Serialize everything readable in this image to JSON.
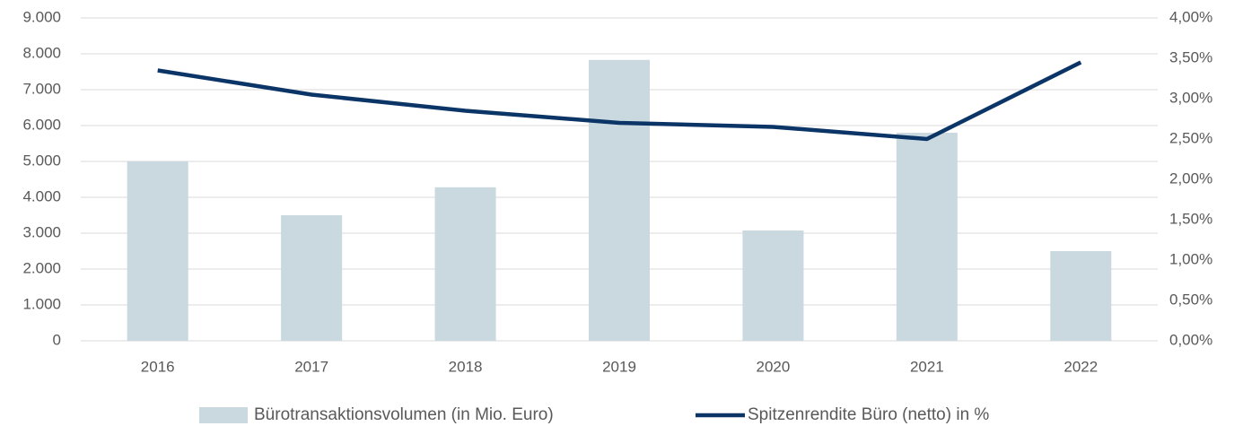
{
  "chart_data": {
    "type": "bar-line",
    "categories": [
      "2016",
      "2017",
      "2018",
      "2019",
      "2020",
      "2021",
      "2022"
    ],
    "series": [
      {
        "name": "Bürotransaktionsvolumen (in Mio. Euro)",
        "type": "bar",
        "color": "#c9d9df",
        "values": [
          5000,
          3500,
          4280,
          7830,
          3075,
          5800,
          2500
        ]
      },
      {
        "name": "Spitzenrendite Büro (netto) in %",
        "type": "line",
        "axis": "y2",
        "color": "#0b3467",
        "values": [
          3.35,
          3.05,
          2.85,
          2.7,
          2.65,
          2.5,
          3.45
        ]
      }
    ],
    "ylim": [
      0,
      9000
    ],
    "yticks": [
      0,
      {
        "value": 1000,
        "label": "1.000"
      },
      {
        "value": 2000,
        "label": "2.000"
      },
      {
        "value": 3000,
        "label": "3.000"
      },
      {
        "value": 4000,
        "label": "4.000"
      },
      {
        "value": 5000,
        "label": "5.000"
      },
      {
        "value": 6000,
        "label": "6.000"
      },
      {
        "value": 7000,
        "label": "7.000"
      },
      {
        "value": 8000,
        "label": "8.000"
      },
      {
        "value": 9000,
        "label": "9.000"
      }
    ],
    "y2lim": [
      0,
      4
    ],
    "y2ticks": [
      {
        "value": 0,
        "label": "0,00%"
      },
      {
        "value": 0.5,
        "label": "0,50%"
      },
      {
        "value": 1,
        "label": "1,00%"
      },
      {
        "value": 1.5,
        "label": "1,50%"
      },
      {
        "value": 2,
        "label": "2,00%"
      },
      {
        "value": 2.5,
        "label": "2,50%"
      },
      {
        "value": 3,
        "label": "3,00%"
      },
      {
        "value": 3.5,
        "label": "3,50%"
      },
      {
        "value": 4,
        "label": "4,00%"
      }
    ],
    "grid": true,
    "legend": "bottom"
  }
}
